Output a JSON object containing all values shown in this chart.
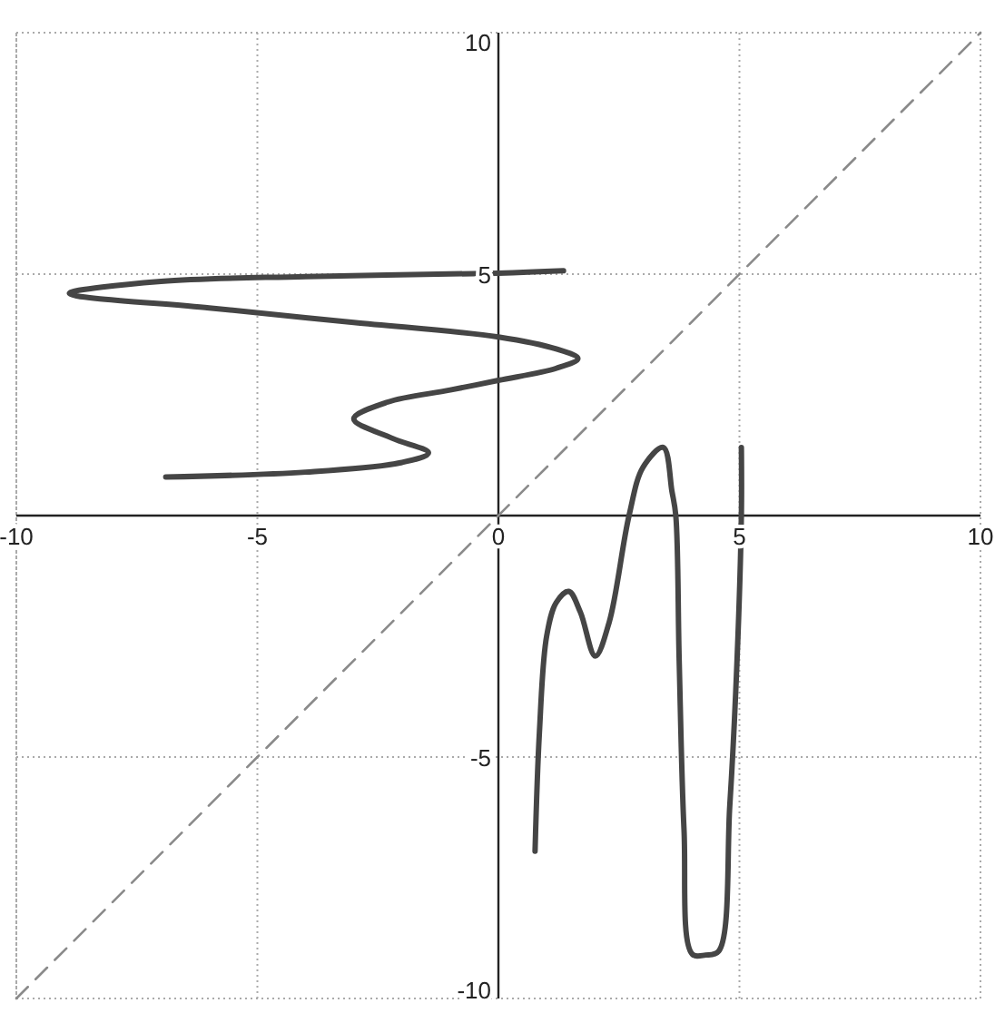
{
  "chart_data": {
    "type": "line",
    "xlim": [
      -10,
      10
    ],
    "ylim": [
      -10,
      10
    ],
    "xticks": [
      -10,
      -5,
      0,
      5,
      10
    ],
    "yticks": [
      -10,
      -5,
      5,
      10
    ],
    "grid": true,
    "marker": "none",
    "series": [
      {
        "color": "#454545",
        "line_style": "solid",
        "x": [
          -6.9,
          -4,
          -2,
          -1.45,
          -2.2,
          -3,
          -2.3,
          -1,
          0,
          1.2,
          1.65,
          1.2,
          0,
          -3,
          -6,
          -8.9,
          -7,
          -4,
          0,
          1.35
        ],
        "values": [
          0.8,
          0.9,
          1.1,
          1.3,
          1.6,
          2.0,
          2.35,
          2.6,
          2.8,
          3.05,
          3.25,
          3.45,
          3.7,
          4.0,
          4.3,
          4.6,
          4.85,
          4.95,
          5.02,
          5.07
        ]
      },
      {
        "color": "#454545",
        "line_style": "solid",
        "x": [
          0.76,
          0.85,
          1.0,
          1.2,
          1.46,
          1.7,
          2.01,
          2.3,
          2.71,
          3.0,
          3.42,
          3.6,
          3.68,
          3.75,
          3.85,
          4.02,
          4.3,
          4.57,
          4.8,
          4.95,
          5.04,
          5.04
        ],
        "values": [
          -6.95,
          -4.5,
          -2.5,
          -1.8,
          -1.57,
          -2.0,
          -2.91,
          -2.2,
          0,
          1.0,
          1.41,
          0.5,
          0,
          -3,
          -6.5,
          -9.08,
          -9.1,
          -9.02,
          -6,
          -3,
          0,
          1.41
        ]
      },
      {
        "color": "#8a8a8a",
        "line_style": "dashed",
        "x": [
          -10,
          10
        ],
        "values": [
          -10,
          10
        ]
      }
    ]
  }
}
